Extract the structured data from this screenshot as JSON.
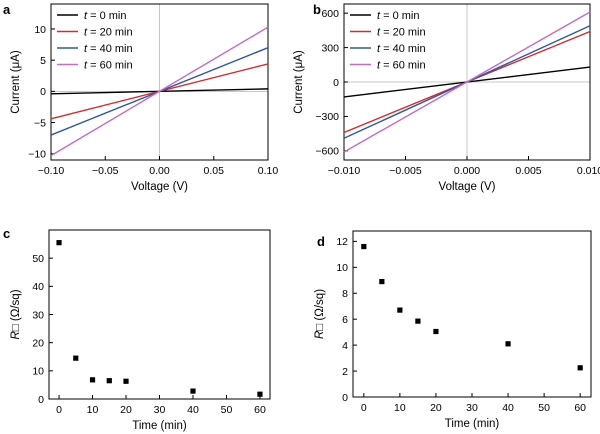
{
  "chart_data": [
    {
      "panel": "a",
      "type": "line",
      "xlabel": "Voltage (V)",
      "ylabel": "Current (μA)",
      "xlim": [
        -0.1,
        0.1
      ],
      "ylim": [
        -11,
        14
      ],
      "xticks": [
        -0.1,
        -0.05,
        0.0,
        0.05,
        0.1
      ],
      "xtick_labels": [
        "−0.10",
        "−0.05",
        "0.00",
        "0.05",
        "0.10"
      ],
      "yticks": [
        -10,
        -5,
        0,
        5,
        10
      ],
      "ytick_labels": [
        "−10",
        "−5",
        "0",
        "5",
        "10"
      ],
      "legend_position": "top-left",
      "series": [
        {
          "name": "t = 0 min",
          "label_var": "t",
          "label_rest": " = 0 min",
          "color": "#000000",
          "x": [
            -0.1,
            0.1
          ],
          "y": [
            -0.4,
            0.4
          ]
        },
        {
          "name": "t = 20 min",
          "label_var": "t",
          "label_rest": " = 20 min",
          "color": "#d62b2b",
          "x": [
            -0.1,
            0.1
          ],
          "y": [
            -4.4,
            4.4
          ]
        },
        {
          "name": "t = 40 min",
          "label_var": "t",
          "label_rest": " = 40 min",
          "color": "#2e58a4",
          "x": [
            -0.1,
            0.1
          ],
          "y": [
            -7.0,
            7.0
          ]
        },
        {
          "name": "t = 60 min",
          "label_var": "t",
          "label_rest": " = 60 min",
          "color": "#c46bc2",
          "x": [
            -0.1,
            0.1
          ],
          "y": [
            -10.3,
            10.3
          ]
        }
      ]
    },
    {
      "panel": "b",
      "type": "line",
      "xlabel": "Voltage (V)",
      "ylabel": "Current (μA)",
      "xlim": [
        -0.01,
        0.01
      ],
      "ylim": [
        -680,
        680
      ],
      "xticks": [
        -0.01,
        -0.005,
        0.0,
        0.005,
        0.01
      ],
      "xtick_labels": [
        "−0.010",
        "−0.005",
        "0.000",
        "0.005",
        "0.010"
      ],
      "yticks": [
        -600,
        -300,
        0,
        300,
        600
      ],
      "ytick_labels": [
        "−600",
        "−300",
        "0",
        "300",
        "600"
      ],
      "legend_position": "top-left",
      "series": [
        {
          "name": "t = 0 min",
          "label_var": "t",
          "label_rest": " = 0 min",
          "color": "#000000",
          "x": [
            -0.01,
            0.01
          ],
          "y": [
            -130,
            130
          ]
        },
        {
          "name": "t = 20 min",
          "label_var": "t",
          "label_rest": " = 20 min",
          "color": "#d62b2b",
          "x": [
            -0.01,
            0.01
          ],
          "y": [
            -440,
            440
          ]
        },
        {
          "name": "t = 40 min",
          "label_var": "t",
          "label_rest": " = 40 min",
          "color": "#2e58a4",
          "x": [
            -0.01,
            0.01
          ],
          "y": [
            -490,
            490
          ]
        },
        {
          "name": "t = 60 min",
          "label_var": "t",
          "label_rest": " = 60 min",
          "color": "#c46bc2",
          "x": [
            -0.01,
            0.01
          ],
          "y": [
            -610,
            610
          ]
        }
      ]
    },
    {
      "panel": "c",
      "type": "scatter",
      "xlabel": "Time (min)",
      "ylabel_var": "R",
      "ylabel_rest": "□ (Ω/sq)",
      "xlim": [
        -3,
        63
      ],
      "ylim": [
        0,
        60
      ],
      "xticks": [
        0,
        10,
        20,
        30,
        40,
        50,
        60
      ],
      "xtick_labels": [
        "0",
        "10",
        "20",
        "30",
        "40",
        "50",
        "60"
      ],
      "yticks": [
        0,
        10,
        20,
        30,
        40,
        50
      ],
      "ytick_labels": [
        "0",
        "10",
        "20",
        "30",
        "40",
        "50"
      ],
      "x": [
        0,
        5,
        10,
        15,
        20,
        40,
        60
      ],
      "y": [
        55.5,
        14.5,
        6.8,
        6.5,
        6.3,
        2.8,
        1.7
      ]
    },
    {
      "panel": "d",
      "type": "scatter",
      "xlabel": "Time (min)",
      "ylabel_var": "R",
      "ylabel_rest": "□ (Ω/sq)",
      "xlim": [
        -3,
        63
      ],
      "ylim": [
        0,
        12.8
      ],
      "xticks": [
        0,
        10,
        20,
        30,
        40,
        50,
        60
      ],
      "xtick_labels": [
        "0",
        "10",
        "20",
        "30",
        "40",
        "50",
        "60"
      ],
      "yticks": [
        0,
        2,
        4,
        6,
        8,
        10,
        12
      ],
      "ytick_labels": [
        "0",
        "2",
        "4",
        "6",
        "8",
        "10",
        "12"
      ],
      "x": [
        0,
        5,
        10,
        15,
        20,
        40,
        60
      ],
      "y": [
        11.6,
        8.9,
        6.7,
        5.85,
        5.05,
        4.1,
        2.25
      ]
    }
  ]
}
